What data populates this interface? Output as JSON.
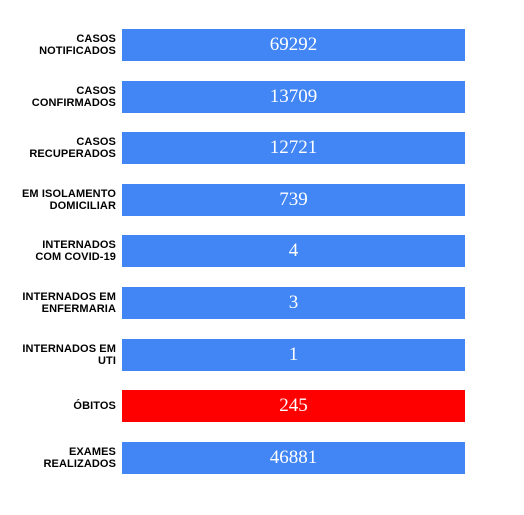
{
  "colors": {
    "default_bar": "#4285f4",
    "deaths_bar": "#ff0000"
  },
  "indicators": [
    {
      "label_line1": "CASOS",
      "label_line2": "NOTIFICADOS",
      "value": "69292"
    },
    {
      "label_line1": "CASOS",
      "label_line2": "CONFIRMADOS",
      "value": "13709"
    },
    {
      "label_line1": "CASOS",
      "label_line2": "RECUPERADOS",
      "value": "12721"
    },
    {
      "label_line1": "EM ISOLAMENTO",
      "label_line2": "DOMICILIAR",
      "value": "739"
    },
    {
      "label_line1": "INTERNADOS",
      "label_line2": "COM COVID-19",
      "value": "4"
    },
    {
      "label_line1": "INTERNADOS EM",
      "label_line2": "ENFERMARIA",
      "value": "3"
    },
    {
      "label_line1": "INTERNADOS EM",
      "label_line2": "UTI",
      "value": "1"
    },
    {
      "label_line1": "ÓBITOS",
      "label_line2": "",
      "value": "245"
    },
    {
      "label_line1": "EXAMES",
      "label_line2": "REALIZADOS",
      "value": "46881"
    }
  ]
}
